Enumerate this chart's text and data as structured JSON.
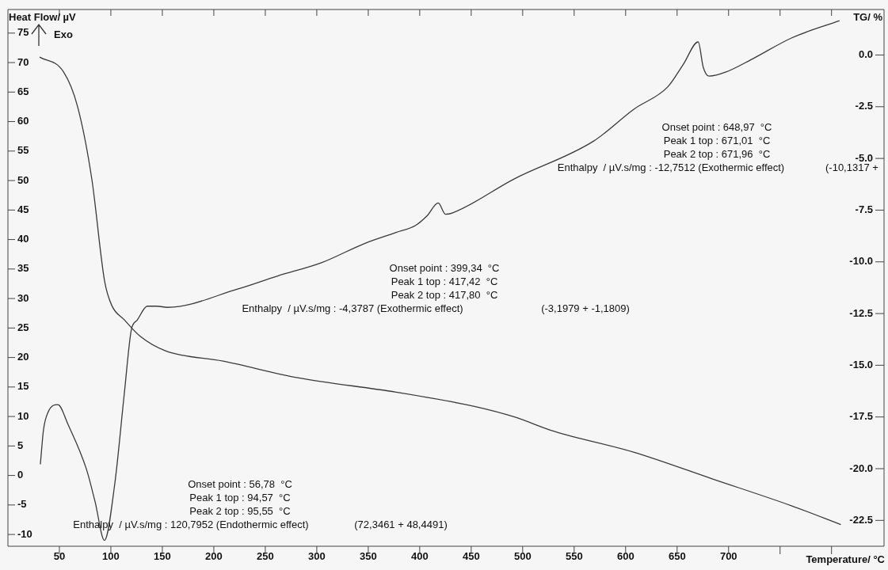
{
  "chart_data": {
    "type": "line",
    "xlabel": "Temperature/ °C",
    "ylabel": "Heat Flow/ µV",
    "y2label": "TG/ %",
    "xlim": [
      0,
      851
    ],
    "xticks": [
      50,
      100,
      150,
      200,
      250,
      300,
      350,
      400,
      450,
      500,
      550,
      600,
      650,
      700,
      {
        "value": 750,
        "label": null
      },
      {
        "value": 800,
        "label": null
      }
    ],
    "ylim": [
      -12,
      79
    ],
    "yticks": [
      -10,
      -5,
      0,
      5,
      10,
      15,
      20,
      25,
      30,
      35,
      40,
      45,
      50,
      55,
      60,
      65,
      70,
      75
    ],
    "y2lim": [
      -23.75,
      2.2
    ],
    "y2ticks": [
      {
        "value": 0,
        "label": "0.0"
      },
      -2.5,
      {
        "value": -5,
        "label": "-5.0"
      },
      -7.5,
      {
        "value": -10,
        "label": "-10.0"
      },
      -12.5,
      {
        "value": -15,
        "label": "-15.0"
      },
      -17.5,
      {
        "value": -20,
        "label": "-20.0"
      },
      -22.5
    ],
    "marker": "none",
    "line_style": "solid",
    "legend": false,
    "series": [
      {
        "color": "#3a3a3a",
        "x": [
          31.5,
          34.6,
          39.2,
          48.5,
          58.5,
          76.2,
          84.6,
          93.8,
          103.8,
          113,
          120,
          125.4,
          135.4,
          144.6,
          155,
          223,
          261.5,
          305,
          346,
          377,
          396,
          407,
          418,
          425,
          431.5,
          492,
          569,
          608,
          641,
          656,
          670.5,
          675.4,
          681,
          697.5,
          723,
          761.5,
          807.7
        ],
        "values": [
          1.9,
          7.8,
          10.8,
          12.0,
          8.6,
          1.1,
          -4.4,
          -11.0,
          -1.4,
          13.8,
          24.8,
          26.3,
          28.7,
          28.7,
          28.5,
          31.6,
          33.8,
          36.1,
          39.3,
          41.2,
          42.4,
          44.0,
          46.2,
          44.3,
          44.5,
          50.3,
          56.7,
          62.1,
          65.9,
          69.7,
          73.5,
          69.2,
          67.7,
          68.4,
          70.6,
          74.2,
          77.1
        ]
      },
      {
        "color": "#3a3a3a",
        "axis": "y2",
        "x": [
          30.8,
          53.8,
          67.7,
          81.5,
          93.8,
          100.8,
          113,
          128.5,
          153,
          209,
          281.5,
          377,
          454,
          492,
          530.8,
          607.7,
          684.6,
          761.5,
          809
        ],
        "values": [
          -0.1,
          -0.8,
          -2.5,
          -6.0,
          -10.9,
          -12.1,
          -12.8,
          -13.6,
          -14.3,
          -14.8,
          -15.6,
          -16.3,
          -17.0,
          -17.5,
          -18.2,
          -19.2,
          -20.5,
          -21.8,
          -22.7
        ]
      }
    ],
    "annotations": [
      "Exo",
      "Onset point : 56,78  °C",
      "Peak 1 top : 94,57  °C",
      "Peak 2 top : 95,55  °C",
      "Enthalpy  / µV.s/mg : 120,7952 (Endothermic effect)",
      "(72,3461 + 48,4491)",
      "Onset point : 399,34  °C",
      "Peak 1 top : 417,42  °C",
      "Peak 2 top : 417,80  °C",
      "Enthalpy  / µV.s/mg : -4,3787 (Exothermic effect)",
      "(-3,1979 + -1,1809)",
      "Onset point : 648,97  °C",
      "Peak 1 top : 671,01  °C",
      "Peak 2 top : 671,96  °C",
      "Enthalpy  / µV.s/mg : -12,7512 (Exothermic effect)",
      "(-10,1317 +"
    ]
  }
}
